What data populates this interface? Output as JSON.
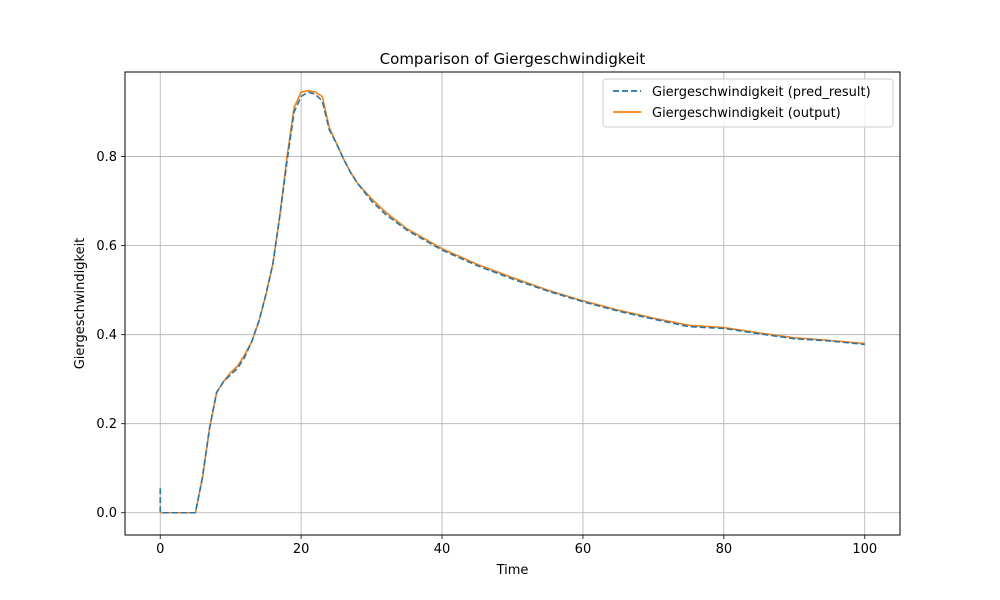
{
  "chart_data": {
    "type": "line",
    "title": "Comparison of Giergeschwindigkeit",
    "xlabel": "Time",
    "ylabel": "Giergeschwindigkeit",
    "xlim": [
      -5,
      105
    ],
    "ylim": [
      -0.05,
      0.99
    ],
    "xticks": [
      0,
      20,
      40,
      60,
      80,
      100
    ],
    "xtick_labels": [
      "0",
      "20",
      "40",
      "60",
      "80",
      "100"
    ],
    "yticks": [
      0.0,
      0.2,
      0.4,
      0.6,
      0.8
    ],
    "ytick_labels": [
      "0.0",
      "0.2",
      "0.4",
      "0.6",
      "0.8"
    ],
    "grid": true,
    "legend_position": "top-right",
    "colors": {
      "pred_result": "#1f77b4",
      "output": "#ff7f0e",
      "grid": "#b0b0b0"
    },
    "series": [
      {
        "name": "Giergeschwindigkeit (pred_result)",
        "style": "dashed",
        "x": [
          0,
          0,
          0.5,
          3,
          5,
          6,
          7,
          8,
          9,
          10,
          11,
          12,
          13,
          14,
          15,
          16,
          17,
          18,
          19,
          20,
          21,
          22,
          23,
          24,
          25,
          26,
          27,
          28,
          30,
          32,
          35,
          40,
          45,
          50,
          55,
          60,
          65,
          70,
          75,
          80,
          85,
          90,
          95,
          100
        ],
        "y": [
          0.055,
          0.0,
          0.0,
          0.0,
          0.0,
          0.08,
          0.19,
          0.27,
          0.295,
          0.31,
          0.325,
          0.35,
          0.385,
          0.43,
          0.49,
          0.56,
          0.67,
          0.79,
          0.9,
          0.935,
          0.945,
          0.94,
          0.925,
          0.86,
          0.83,
          0.795,
          0.765,
          0.74,
          0.7,
          0.67,
          0.635,
          0.59,
          0.555,
          0.525,
          0.498,
          0.474,
          0.453,
          0.435,
          0.418,
          0.414,
          0.402,
          0.391,
          0.386,
          0.378
        ]
      },
      {
        "name": "Giergeschwindigkeit (output)",
        "style": "solid",
        "x": [
          0,
          0.5,
          3,
          5,
          6,
          7,
          8,
          9,
          10,
          11,
          12,
          13,
          14,
          15,
          16,
          17,
          18,
          19,
          20,
          21,
          22,
          23,
          24,
          25,
          26,
          27,
          28,
          30,
          32,
          35,
          40,
          45,
          50,
          55,
          60,
          65,
          70,
          75,
          80,
          85,
          90,
          95,
          100
        ],
        "y": [
          0.0,
          0.0,
          0.0,
          0.0,
          0.08,
          0.19,
          0.27,
          0.295,
          0.315,
          0.33,
          0.355,
          0.385,
          0.43,
          0.49,
          0.56,
          0.67,
          0.8,
          0.91,
          0.945,
          0.948,
          0.945,
          0.935,
          0.865,
          0.83,
          0.795,
          0.765,
          0.74,
          0.705,
          0.675,
          0.638,
          0.593,
          0.558,
          0.528,
          0.5,
          0.476,
          0.455,
          0.437,
          0.421,
          0.416,
          0.404,
          0.393,
          0.387,
          0.38
        ]
      }
    ]
  }
}
